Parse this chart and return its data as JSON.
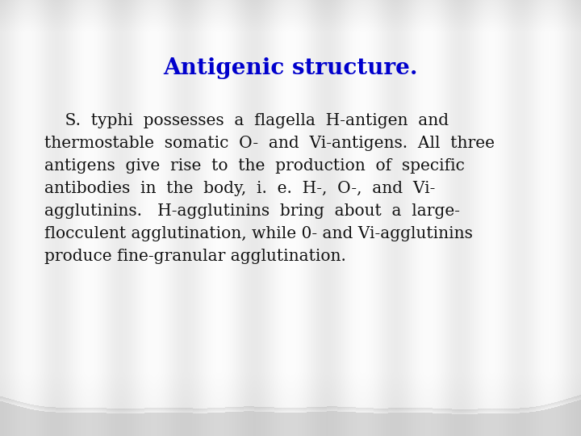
{
  "title": "Antigenic structure.",
  "title_color": "#0000cc",
  "title_fontsize": 20,
  "title_bold": true,
  "body_line1": "    S.  typhi  possesses  a  flagella  H-antigen  and",
  "body_line2": "thermostable  somatic  O-  and  Vi-antigens.  All  three",
  "body_line3": "antigens  give  rise  to  the  production  of  specific",
  "body_line4": "antibodies  in  the  body,  i.  e.  H-,  O-,  and  Vi-",
  "body_line5": "agglutinins.   H-agglutinins  bring  about  a  large-",
  "body_line6": "flocculent agglutination, while 0- and Vi-agglutinins",
  "body_line7": "produce fine-granular agglutination.",
  "body_color": "#111111",
  "body_fontsize": 14.5
}
